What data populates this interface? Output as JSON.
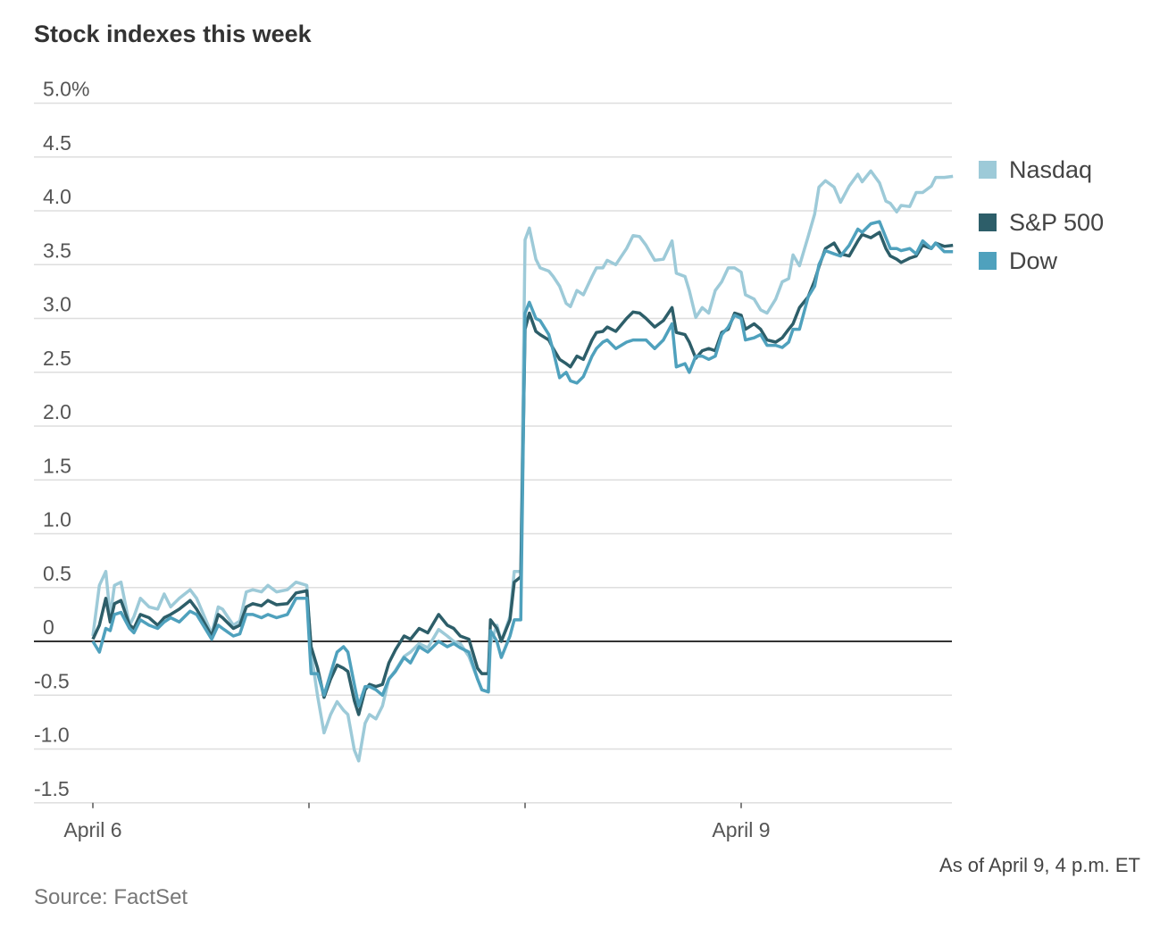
{
  "chart_data": {
    "type": "line",
    "title": "Stock indexes this week",
    "xlabel": "",
    "ylabel": "",
    "ylim": [
      -1.5,
      5.0
    ],
    "xlim": [
      0,
      3.98
    ],
    "y_ticks": [
      {
        "value": 5.0,
        "label": "5.0%"
      },
      {
        "value": 4.5,
        "label": "4.5"
      },
      {
        "value": 4.0,
        "label": "4.0"
      },
      {
        "value": 3.5,
        "label": "3.5"
      },
      {
        "value": 3.0,
        "label": "3.0"
      },
      {
        "value": 2.5,
        "label": "2.5"
      },
      {
        "value": 2.0,
        "label": "2.0"
      },
      {
        "value": 1.5,
        "label": "1.5"
      },
      {
        "value": 1.0,
        "label": "1.0"
      },
      {
        "value": 0.5,
        "label": "0.5"
      },
      {
        "value": 0,
        "label": "0"
      },
      {
        "value": -0.5,
        "label": "-0.5"
      },
      {
        "value": -1.0,
        "label": "-1.0"
      },
      {
        "value": -1.5,
        "label": "-1.5"
      }
    ],
    "x_ticks": [
      {
        "value": 0,
        "label": "April 6"
      },
      {
        "value": 1,
        "label": ""
      },
      {
        "value": 2,
        "label": ""
      },
      {
        "value": 3,
        "label": "April 9"
      }
    ],
    "grid": true,
    "legend_position": "right",
    "x": [
      0.0,
      0.03,
      0.06,
      0.08,
      0.1,
      0.13,
      0.17,
      0.19,
      0.22,
      0.26,
      0.3,
      0.33,
      0.36,
      0.4,
      0.45,
      0.48,
      0.55,
      0.58,
      0.6,
      0.65,
      0.68,
      0.71,
      0.74,
      0.78,
      0.81,
      0.85,
      0.9,
      0.94,
      0.99,
      1.01,
      1.04,
      1.07,
      1.1,
      1.13,
      1.16,
      1.18,
      1.21,
      1.23,
      1.26,
      1.28,
      1.31,
      1.34,
      1.37,
      1.4,
      1.44,
      1.47,
      1.51,
      1.55,
      1.6,
      1.64,
      1.67,
      1.7,
      1.74,
      1.78,
      1.8,
      1.83,
      1.84,
      1.87,
      1.89,
      1.93,
      1.95,
      1.98,
      2.0,
      2.02,
      2.05,
      2.07,
      2.11,
      2.13,
      2.16,
      2.19,
      2.21,
      2.24,
      2.27,
      2.31,
      2.33,
      2.36,
      2.38,
      2.42,
      2.47,
      2.5,
      2.53,
      2.56,
      2.6,
      2.64,
      2.68,
      2.7,
      2.74,
      2.76,
      2.79,
      2.82,
      2.85,
      2.88,
      2.91,
      2.94,
      2.97,
      3.0,
      3.02,
      3.06,
      3.09,
      3.12,
      3.16,
      3.19,
      3.22,
      3.24,
      3.27,
      3.31,
      3.34,
      3.36,
      3.39,
      3.43,
      3.46,
      3.5,
      3.54,
      3.56,
      3.6,
      3.64,
      3.67,
      3.69,
      3.72,
      3.74,
      3.78,
      3.81,
      3.84,
      3.88,
      3.9,
      3.94,
      3.98
    ],
    "series": [
      {
        "name": "Nasdaq",
        "color": "#9dcad8",
        "values": [
          0.05,
          0.52,
          0.65,
          0.23,
          0.52,
          0.55,
          0.15,
          0.23,
          0.4,
          0.32,
          0.3,
          0.44,
          0.32,
          0.4,
          0.48,
          0.4,
          0.07,
          0.32,
          0.3,
          0.15,
          0.19,
          0.46,
          0.48,
          0.46,
          0.52,
          0.46,
          0.48,
          0.55,
          0.52,
          -0.1,
          -0.51,
          -0.85,
          -0.68,
          -0.56,
          -0.64,
          -0.68,
          -1.01,
          -1.11,
          -0.76,
          -0.68,
          -0.72,
          -0.6,
          -0.35,
          -0.27,
          -0.14,
          -0.1,
          -0.02,
          -0.06,
          0.11,
          0.05,
          0.0,
          -0.02,
          -0.14,
          -0.35,
          -0.45,
          -0.47,
          -0.02,
          0.15,
          0.0,
          0.23,
          0.65,
          0.65,
          3.73,
          3.84,
          3.55,
          3.47,
          3.44,
          3.39,
          3.3,
          3.14,
          3.11,
          3.26,
          3.22,
          3.39,
          3.47,
          3.47,
          3.54,
          3.5,
          3.65,
          3.77,
          3.76,
          3.68,
          3.54,
          3.55,
          3.72,
          3.42,
          3.39,
          3.26,
          3.01,
          3.1,
          3.05,
          3.26,
          3.34,
          3.47,
          3.47,
          3.43,
          3.22,
          3.18,
          3.08,
          3.05,
          3.18,
          3.34,
          3.37,
          3.59,
          3.49,
          3.76,
          3.97,
          4.22,
          4.28,
          4.22,
          4.08,
          4.23,
          4.34,
          4.27,
          4.37,
          4.26,
          4.09,
          4.07,
          3.99,
          4.05,
          4.04,
          4.17,
          4.17,
          4.23,
          4.31,
          4.31,
          4.32
        ]
      },
      {
        "name": "S&P 500",
        "color": "#2d5e69",
        "values": [
          0.02,
          0.15,
          0.4,
          0.18,
          0.35,
          0.38,
          0.15,
          0.12,
          0.25,
          0.22,
          0.15,
          0.22,
          0.25,
          0.3,
          0.38,
          0.3,
          0.05,
          0.25,
          0.22,
          0.12,
          0.15,
          0.32,
          0.35,
          0.33,
          0.38,
          0.34,
          0.35,
          0.45,
          0.47,
          -0.05,
          -0.25,
          -0.52,
          -0.35,
          -0.22,
          -0.25,
          -0.28,
          -0.55,
          -0.68,
          -0.45,
          -0.4,
          -0.42,
          -0.4,
          -0.2,
          -0.08,
          0.05,
          0.02,
          0.12,
          0.08,
          0.25,
          0.15,
          0.12,
          0.05,
          0.02,
          -0.25,
          -0.3,
          -0.3,
          0.2,
          0.12,
          0.0,
          0.2,
          0.55,
          0.6,
          2.9,
          3.05,
          2.88,
          2.85,
          2.8,
          2.72,
          2.62,
          2.58,
          2.55,
          2.65,
          2.62,
          2.8,
          2.87,
          2.88,
          2.92,
          2.88,
          3.0,
          3.06,
          3.05,
          3.0,
          2.92,
          2.98,
          3.1,
          2.87,
          2.85,
          2.78,
          2.63,
          2.7,
          2.72,
          2.7,
          2.87,
          2.9,
          3.05,
          3.03,
          2.9,
          2.95,
          2.9,
          2.8,
          2.78,
          2.82,
          2.9,
          2.95,
          3.1,
          3.2,
          3.35,
          3.48,
          3.65,
          3.7,
          3.6,
          3.58,
          3.72,
          3.78,
          3.75,
          3.8,
          3.65,
          3.58,
          3.55,
          3.52,
          3.56,
          3.58,
          3.68,
          3.65,
          3.7,
          3.67,
          3.68
        ]
      },
      {
        "name": "Dow",
        "color": "#4fa1bd",
        "values": [
          0.0,
          -0.1,
          0.12,
          0.1,
          0.25,
          0.27,
          0.12,
          0.08,
          0.2,
          0.15,
          0.12,
          0.18,
          0.22,
          0.18,
          0.28,
          0.25,
          0.02,
          0.15,
          0.12,
          0.05,
          0.07,
          0.25,
          0.25,
          0.22,
          0.25,
          0.22,
          0.25,
          0.4,
          0.4,
          -0.3,
          -0.3,
          -0.5,
          -0.3,
          -0.1,
          -0.05,
          -0.1,
          -0.4,
          -0.6,
          -0.42,
          -0.42,
          -0.45,
          -0.5,
          -0.35,
          -0.28,
          -0.15,
          -0.2,
          -0.05,
          -0.1,
          0.0,
          -0.05,
          -0.02,
          -0.06,
          -0.1,
          -0.35,
          -0.45,
          -0.47,
          0.1,
          0.0,
          -0.15,
          0.05,
          0.2,
          0.2,
          3.05,
          3.15,
          3.0,
          2.98,
          2.85,
          2.7,
          2.45,
          2.5,
          2.42,
          2.4,
          2.46,
          2.65,
          2.72,
          2.78,
          2.8,
          2.72,
          2.78,
          2.8,
          2.8,
          2.8,
          2.72,
          2.8,
          2.95,
          2.55,
          2.58,
          2.5,
          2.65,
          2.65,
          2.62,
          2.65,
          2.85,
          2.92,
          3.03,
          3.0,
          2.8,
          2.82,
          2.85,
          2.75,
          2.75,
          2.73,
          2.78,
          2.9,
          2.9,
          3.2,
          3.3,
          3.5,
          3.63,
          3.6,
          3.58,
          3.68,
          3.83,
          3.8,
          3.88,
          3.9,
          3.75,
          3.65,
          3.65,
          3.63,
          3.65,
          3.6,
          3.72,
          3.65,
          3.7,
          3.62,
          3.62
        ]
      }
    ],
    "legend": [
      {
        "label": "Nasdaq",
        "color": "#9dcad8"
      },
      {
        "label": "S&P 500",
        "color": "#2d5e69"
      },
      {
        "label": "Dow",
        "color": "#4fa1bd"
      }
    ],
    "annotation": "As of April 9, 4 p.m. ET",
    "source": "Source: FactSet"
  }
}
